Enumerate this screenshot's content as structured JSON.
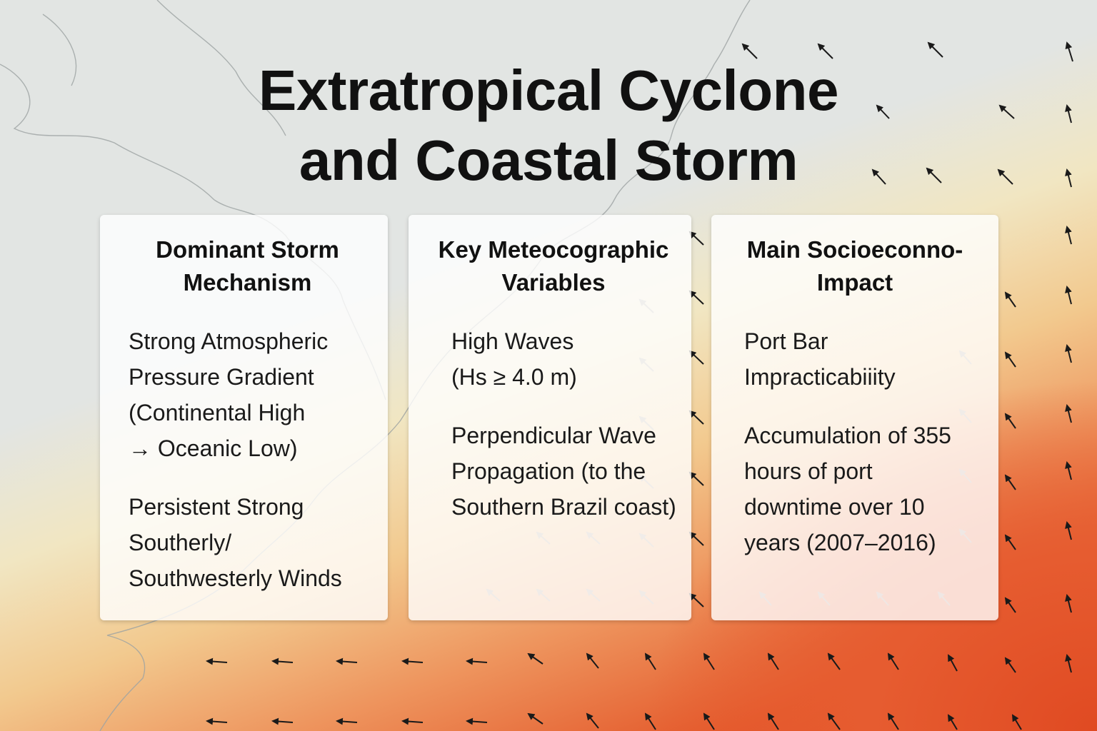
{
  "title": {
    "line1": "Extratropical Cyclone",
    "line2": "and Coastal Storm"
  },
  "cards": [
    {
      "heading": [
        "Dominant Storm",
        "Mechanism"
      ],
      "items": [
        [
          "Strong Atmospheric",
          "Pressure Gradient",
          "(Continental High",
          "→ Oceanic Low)"
        ],
        [
          "Persistent Strong",
          "Southerly/",
          "Southwesterly Winds"
        ]
      ]
    },
    {
      "heading": [
        "Key Meteocographic",
        "Variables"
      ],
      "items": [
        [
          "High Waves",
          "(Hs ≥ 4.0 m)"
        ],
        [
          "Perpendicular Wave",
          "Propagation (to the",
          "Southern Brazil coast)"
        ]
      ]
    },
    {
      "heading": [
        "Main Socioeconno-",
        "Impact"
      ],
      "items": [
        [
          "Port Bar",
          "Impracticabiiity"
        ],
        [
          "Accumulation of 355",
          "hours of port",
          "downtime over 10",
          "years (2007–2016)"
        ]
      ]
    }
  ],
  "colors": {
    "land": "#e2e5e3",
    "warm_sea": "#f2c98e",
    "hot_sea": "#de4a20",
    "text": "#111111"
  },
  "icons": {
    "wind_arrow": "wind-arrow-icon"
  }
}
